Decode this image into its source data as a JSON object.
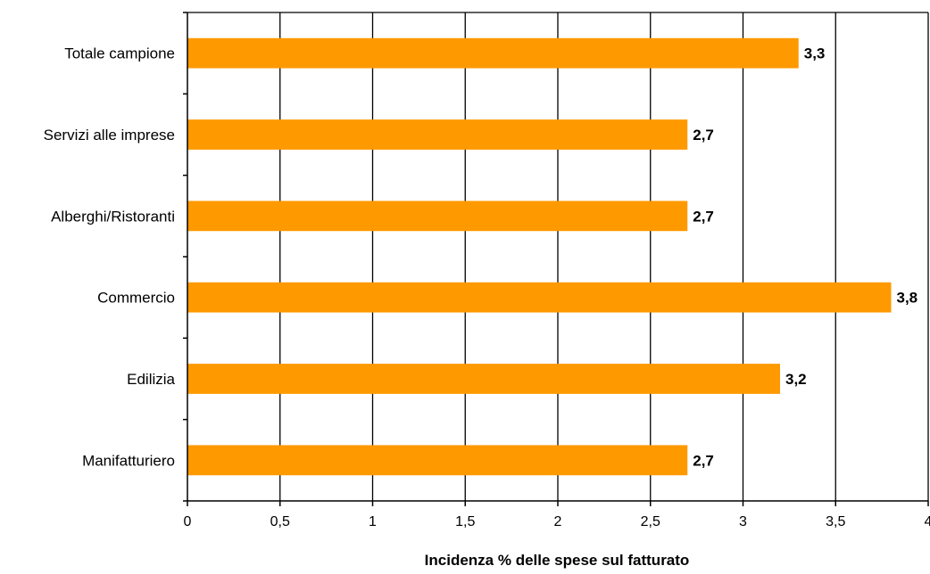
{
  "chart_data": {
    "type": "bar",
    "orientation": "horizontal",
    "categories": [
      "Totale campione",
      "Servizi alle imprese",
      "Alberghi/Ristoranti",
      "Commercio",
      "Edilizia",
      "Manifatturiero"
    ],
    "values": [
      3.3,
      2.7,
      2.7,
      3.8,
      3.2,
      2.7
    ],
    "data_labels": [
      "3,3",
      "2,7",
      "2,7",
      "3,8",
      "3,2",
      "2,7"
    ],
    "xlabel": "Incidenza % delle spese sul fatturato",
    "ylabel": "",
    "xlim": [
      0,
      4
    ],
    "xticks": [
      0,
      0.5,
      1,
      1.5,
      2,
      2.5,
      3,
      3.5,
      4
    ],
    "xtick_labels": [
      "0",
      "0,5",
      "1",
      "1,5",
      "2",
      "2,5",
      "3",
      "3,5",
      "4"
    ],
    "grid": "vertical",
    "bar_color": "#FF9900"
  }
}
